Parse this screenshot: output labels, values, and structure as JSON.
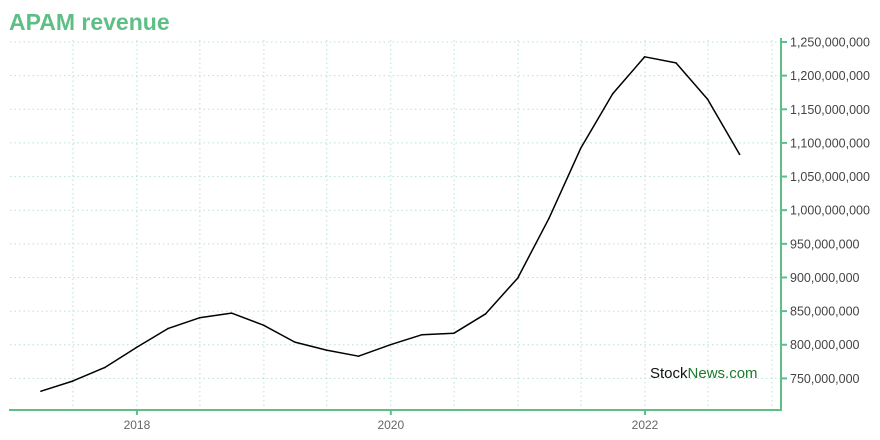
{
  "chart_data": {
    "type": "line",
    "title": "APAM revenue",
    "xlabel": "",
    "ylabel": "",
    "x_ticks": [
      "2018",
      "2020",
      "2022"
    ],
    "y_ticks": [
      750000000,
      800000000,
      850000000,
      900000000,
      950000000,
      1000000000,
      1050000000,
      1100000000,
      1150000000,
      1200000000,
      1250000000
    ],
    "y_tick_labels": [
      "750,000,000",
      "800,000,000",
      "850,000,000",
      "900,000,000",
      "950,000,000",
      "1,000,000,000",
      "1,050,000,000",
      "1,100,000,000",
      "1,150,000,000",
      "1,200,000,000",
      "1,250,000,000"
    ],
    "ylim": [
      703000000,
      1253000000
    ],
    "xlim": [
      "2017-01-01",
      "2023-01-27"
    ],
    "grid": true,
    "axis_position": "right",
    "series": [
      {
        "color": "#000000",
        "points": [
          [
            "2017-03-31",
            731000000
          ],
          [
            "2017-06-30",
            746000000
          ],
          [
            "2017-09-30",
            766000000
          ],
          [
            "2017-12-31",
            796000000
          ],
          [
            "2018-03-31",
            824000000
          ],
          [
            "2018-06-30",
            840000000
          ],
          [
            "2018-09-30",
            847000000
          ],
          [
            "2018-12-31",
            829000000
          ],
          [
            "2019-03-31",
            804000000
          ],
          [
            "2019-06-30",
            792000000
          ],
          [
            "2019-09-30",
            783000000
          ],
          [
            "2019-12-31",
            800000000
          ],
          [
            "2020-03-31",
            815000000
          ],
          [
            "2020-06-30",
            817000000
          ],
          [
            "2020-09-30",
            846000000
          ],
          [
            "2020-12-31",
            899000000
          ],
          [
            "2021-03-31",
            988000000
          ],
          [
            "2021-06-30",
            1092000000
          ],
          [
            "2021-09-30",
            1173000000
          ],
          [
            "2021-12-31",
            1228000000
          ],
          [
            "2022-03-31",
            1219000000
          ],
          [
            "2022-06-30",
            1165000000
          ],
          [
            "2022-09-30",
            1083000000
          ]
        ]
      }
    ]
  },
  "watermark": {
    "part1": "Stock",
    "part2": "News",
    "part3": ".com"
  },
  "colors": {
    "accent": "#5dbf85",
    "line": "#000000",
    "grid": "#b7e3cf"
  }
}
